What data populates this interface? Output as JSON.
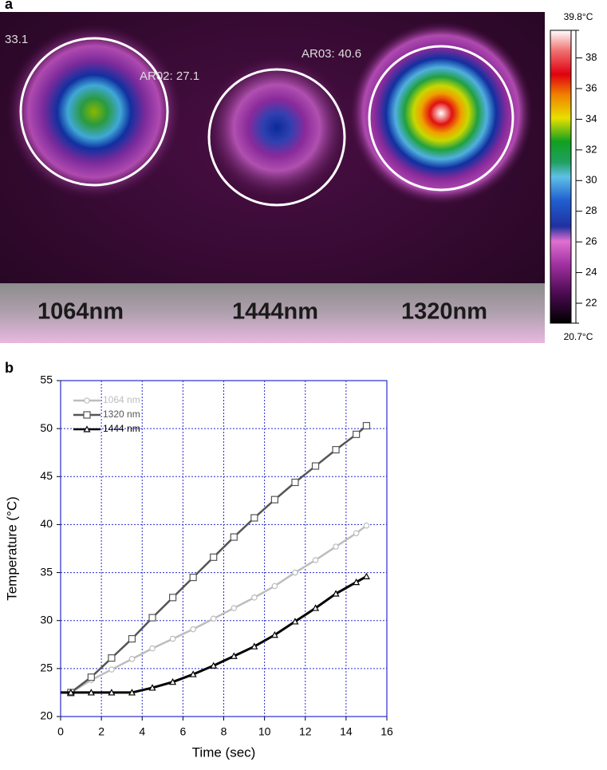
{
  "panel_a": {
    "label": "a",
    "spots": [
      {
        "name": "1064nm",
        "reading": "33.1"
      },
      {
        "name": "1444nm",
        "reading": "AR02: 27.1"
      },
      {
        "name": "1320nm",
        "reading": "AR03: 40.6"
      }
    ],
    "colorbar": {
      "lim": [
        20.7,
        39.8
      ],
      "ticks": [
        {
          "value": 20.7,
          "label": "20.7°C"
        },
        22,
        24,
        26,
        28,
        30,
        32,
        34,
        36,
        38,
        {
          "value": 39.8,
          "label": "39.8°C"
        }
      ]
    }
  },
  "chart_data": {
    "type": "line",
    "panel_label": "b",
    "xlabel": "Time (sec)",
    "ylabel": "Temperature (°C)",
    "x": [
      0,
      0.5,
      1.5,
      2.5,
      3.5,
      4.5,
      5.5,
      6.5,
      7.5,
      8.5,
      9.5,
      10.5,
      11.5,
      12.5,
      13.5,
      14.5,
      15
    ],
    "series": [
      {
        "name": "1064 nm",
        "color": "#bdbdbd",
        "marker": "circle",
        "values": [
          22.5,
          22.5,
          23.8,
          24.9,
          26.0,
          27.1,
          28.1,
          29.1,
          30.2,
          31.3,
          32.4,
          33.6,
          35.0,
          36.3,
          37.7,
          39.1,
          39.9
        ]
      },
      {
        "name": "1320 nm",
        "color": "#555555",
        "marker": "square",
        "values": [
          22.5,
          22.5,
          24.1,
          26.1,
          28.1,
          30.3,
          32.4,
          34.5,
          36.6,
          38.7,
          40.7,
          42.6,
          44.4,
          46.1,
          47.8,
          49.4,
          50.3
        ]
      },
      {
        "name": "1444 nm",
        "color": "#000000",
        "marker": "triangle",
        "values": [
          22.5,
          22.5,
          22.5,
          22.5,
          22.5,
          23.0,
          23.6,
          24.4,
          25.3,
          26.3,
          27.3,
          28.5,
          29.9,
          31.3,
          32.8,
          34.0,
          34.6
        ]
      }
    ],
    "xlim": [
      0,
      16
    ],
    "xticks": [
      0,
      2,
      4,
      6,
      8,
      10,
      12,
      14,
      16
    ],
    "ylim": [
      20,
      55
    ],
    "yticks": [
      20,
      25,
      30,
      35,
      40,
      45,
      50,
      55
    ],
    "grid": true,
    "legend": "upper left"
  }
}
